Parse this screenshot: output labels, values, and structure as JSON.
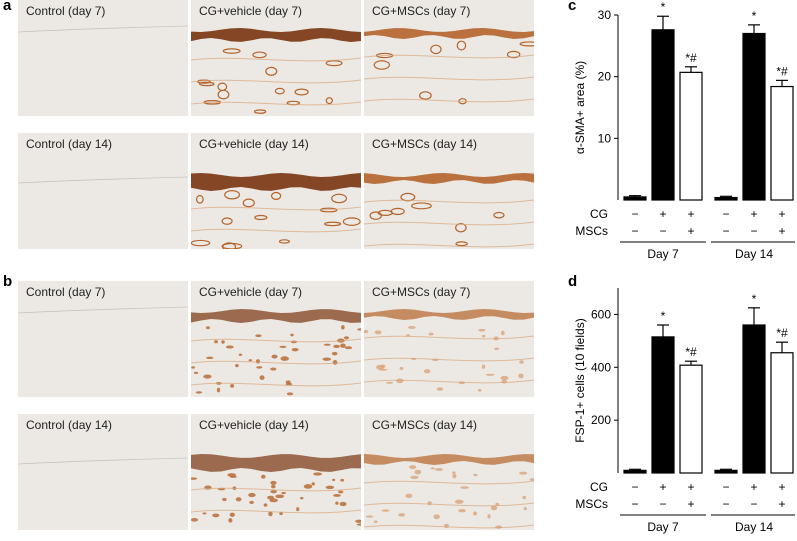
{
  "panels": {
    "a": {
      "letter": "a",
      "rows": [
        {
          "tiles": [
            {
              "label": "Control (day 7)",
              "stain": "control",
              "variant": "day7"
            },
            {
              "label": "CG+vehicle (day 7)",
              "stain": "sma-heavy",
              "variant": "day7"
            },
            {
              "label": "CG+MSCs (day 7)",
              "stain": "sma-light",
              "variant": "day7"
            }
          ]
        },
        {
          "tiles": [
            {
              "label": "Control (day 14)",
              "stain": "control",
              "variant": "day14"
            },
            {
              "label": "CG+vehicle (day 14)",
              "stain": "sma-heavy",
              "variant": "day14"
            },
            {
              "label": "CG+MSCs (day 14)",
              "stain": "sma-light",
              "variant": "day14"
            }
          ]
        }
      ]
    },
    "b": {
      "letter": "b",
      "rows": [
        {
          "tiles": [
            {
              "label": "Control (day 7)",
              "stain": "control",
              "variant": "day7"
            },
            {
              "label": "CG+vehicle (day 7)",
              "stain": "fsp-heavy",
              "variant": "day7"
            },
            {
              "label": "CG+MSCs (day 7)",
              "stain": "fsp-light",
              "variant": "day7"
            }
          ]
        },
        {
          "tiles": [
            {
              "label": "Control (day 14)",
              "stain": "control",
              "variant": "day14"
            },
            {
              "label": "CG+vehicle (day 14)",
              "stain": "fsp-heavy",
              "variant": "day14"
            },
            {
              "label": "CG+MSCs (day 14)",
              "stain": "fsp-light",
              "variant": "day14"
            }
          ]
        }
      ]
    }
  },
  "colors": {
    "tissue_background": "#ece9e4",
    "stain_dark": "#7a3410",
    "stain_mid": "#b5642a",
    "stain_light": "#d9a47a",
    "bar_filled": "#000000",
    "bar_open": "#ffffff"
  },
  "chart_data": [
    {
      "panel": "c",
      "type": "bar",
      "title": "",
      "xlabel": "",
      "ylabel": "α-SMA+ area (%)",
      "ylim": [
        0,
        30
      ],
      "yticks": [
        10,
        20,
        30
      ],
      "groups": [
        "Day 7",
        "Day 14"
      ],
      "row_labels": [
        "CG",
        "MSCs"
      ],
      "bars": [
        {
          "group": "Day 7",
          "value": 0.5,
          "error": 0.2,
          "fill": "#000000",
          "cg": "−",
          "mscs": "−",
          "annotation": ""
        },
        {
          "group": "Day 7",
          "value": 27.6,
          "error": 2.2,
          "fill": "#000000",
          "cg": "+",
          "mscs": "−",
          "annotation": "*"
        },
        {
          "group": "Day 7",
          "value": 20.7,
          "error": 0.9,
          "fill": "#ffffff",
          "cg": "+",
          "mscs": "+",
          "annotation": "*#"
        },
        {
          "group": "Day 14",
          "value": 0.4,
          "error": 0.2,
          "fill": "#000000",
          "cg": "−",
          "mscs": "−",
          "annotation": ""
        },
        {
          "group": "Day 14",
          "value": 27.0,
          "error": 1.4,
          "fill": "#000000",
          "cg": "+",
          "mscs": "−",
          "annotation": "*"
        },
        {
          "group": "Day 14",
          "value": 18.4,
          "error": 1.0,
          "fill": "#ffffff",
          "cg": "+",
          "mscs": "+",
          "annotation": "*#"
        }
      ]
    },
    {
      "panel": "d",
      "type": "bar",
      "title": "",
      "xlabel": "",
      "ylabel": "FSP-1+ cells (10 fields)",
      "ylim": [
        0,
        700
      ],
      "yticks": [
        200,
        400,
        600
      ],
      "groups": [
        "Day 7",
        "Day 14"
      ],
      "row_labels": [
        "CG",
        "MSCs"
      ],
      "bars": [
        {
          "group": "Day 7",
          "value": 10,
          "error": 4,
          "fill": "#000000",
          "cg": "−",
          "mscs": "−",
          "annotation": ""
        },
        {
          "group": "Day 7",
          "value": 515,
          "error": 45,
          "fill": "#000000",
          "cg": "+",
          "mscs": "−",
          "annotation": "*"
        },
        {
          "group": "Day 7",
          "value": 408,
          "error": 15,
          "fill": "#ffffff",
          "cg": "+",
          "mscs": "+",
          "annotation": "*#"
        },
        {
          "group": "Day 14",
          "value": 10,
          "error": 4,
          "fill": "#000000",
          "cg": "−",
          "mscs": "−",
          "annotation": ""
        },
        {
          "group": "Day 14",
          "value": 560,
          "error": 65,
          "fill": "#000000",
          "cg": "+",
          "mscs": "−",
          "annotation": "*"
        },
        {
          "group": "Day 14",
          "value": 455,
          "error": 40,
          "fill": "#ffffff",
          "cg": "+",
          "mscs": "+",
          "annotation": "*#"
        }
      ]
    }
  ]
}
